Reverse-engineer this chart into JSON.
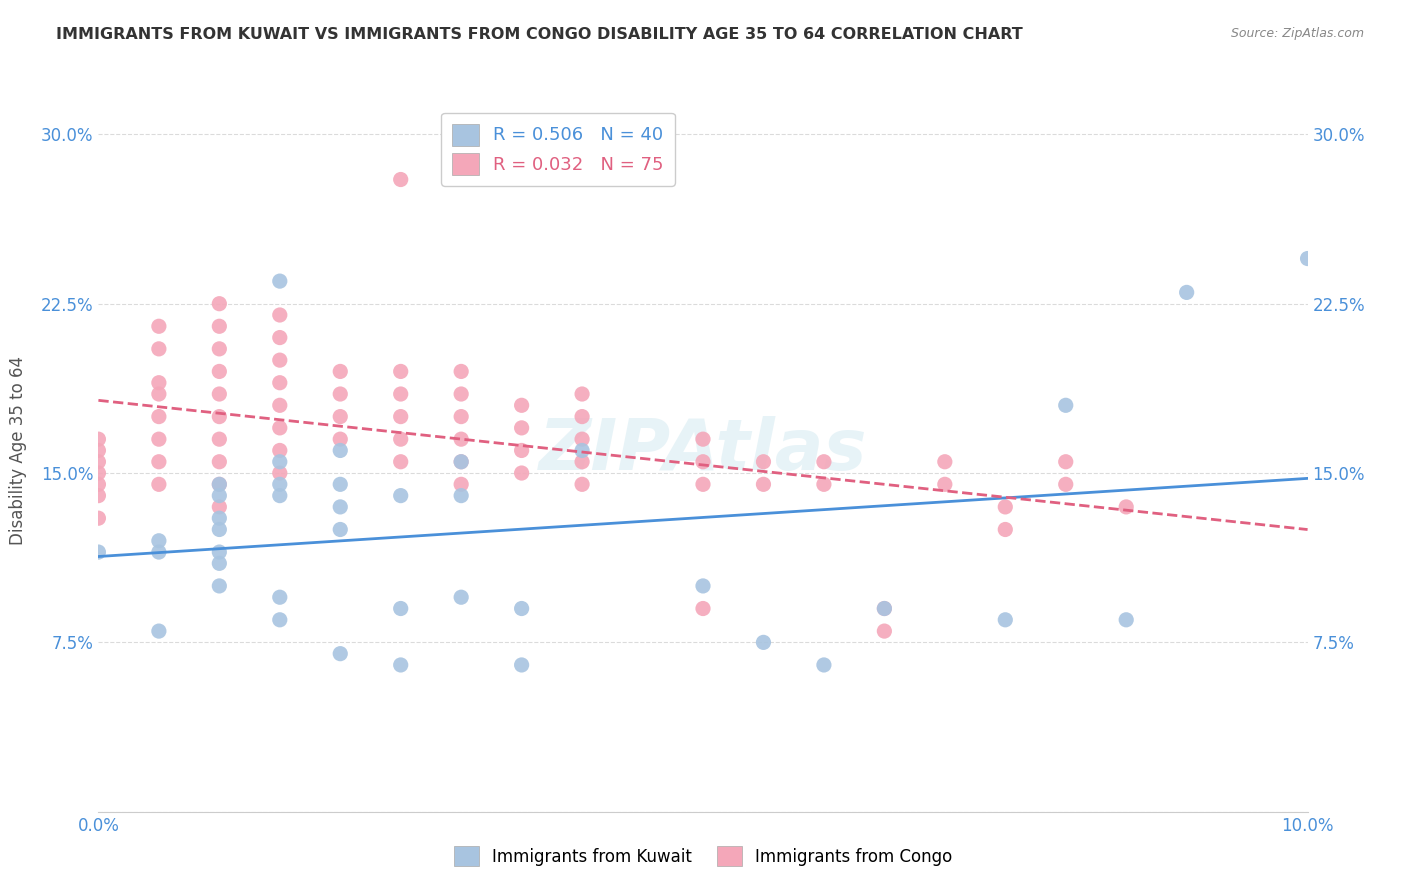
{
  "title": "IMMIGRANTS FROM KUWAIT VS IMMIGRANTS FROM CONGO DISABILITY AGE 35 TO 64 CORRELATION CHART",
  "source": "Source: ZipAtlas.com",
  "xlabel": "",
  "ylabel": "Disability Age 35 to 64",
  "xlim": [
    0.0,
    0.1
  ],
  "ylim": [
    0.0,
    0.32
  ],
  "x_ticks": [
    0.0,
    0.02,
    0.04,
    0.06,
    0.08,
    0.1
  ],
  "x_tick_labels": [
    "0.0%",
    "",
    "",
    "",
    "",
    "10.0%"
  ],
  "y_ticks": [
    0.0,
    0.075,
    0.15,
    0.225,
    0.3
  ],
  "y_tick_labels": [
    "",
    "7.5%",
    "15.0%",
    "22.5%",
    "30.0%"
  ],
  "kuwait_color": "#a8c4e0",
  "congo_color": "#f4a7b9",
  "kuwait_line_color": "#4a90d9",
  "congo_line_color": "#e06080",
  "R_kuwait": 0.506,
  "N_kuwait": 40,
  "R_congo": 0.032,
  "N_congo": 75,
  "watermark": "ZIPAtlas",
  "kuwait_scatter_x": [
    0.0,
    0.005,
    0.005,
    0.005,
    0.01,
    0.01,
    0.01,
    0.01,
    0.01,
    0.01,
    0.01,
    0.015,
    0.015,
    0.015,
    0.015,
    0.015,
    0.015,
    0.02,
    0.02,
    0.02,
    0.02,
    0.02,
    0.025,
    0.025,
    0.025,
    0.03,
    0.03,
    0.03,
    0.035,
    0.035,
    0.04,
    0.05,
    0.055,
    0.06,
    0.065,
    0.075,
    0.08,
    0.085,
    0.09,
    0.1
  ],
  "kuwait_scatter_y": [
    0.115,
    0.12,
    0.115,
    0.08,
    0.13,
    0.145,
    0.14,
    0.125,
    0.115,
    0.11,
    0.1,
    0.235,
    0.155,
    0.145,
    0.14,
    0.095,
    0.085,
    0.16,
    0.145,
    0.135,
    0.125,
    0.07,
    0.14,
    0.09,
    0.065,
    0.155,
    0.14,
    0.095,
    0.09,
    0.065,
    0.16,
    0.1,
    0.075,
    0.065,
    0.09,
    0.085,
    0.18,
    0.085,
    0.23,
    0.245
  ],
  "congo_scatter_x": [
    0.0,
    0.0,
    0.0,
    0.0,
    0.0,
    0.0,
    0.0,
    0.005,
    0.005,
    0.005,
    0.005,
    0.005,
    0.005,
    0.005,
    0.005,
    0.01,
    0.01,
    0.01,
    0.01,
    0.01,
    0.01,
    0.01,
    0.01,
    0.01,
    0.01,
    0.015,
    0.015,
    0.015,
    0.015,
    0.015,
    0.015,
    0.015,
    0.015,
    0.02,
    0.02,
    0.02,
    0.02,
    0.025,
    0.025,
    0.025,
    0.025,
    0.025,
    0.025,
    0.03,
    0.03,
    0.03,
    0.03,
    0.03,
    0.03,
    0.035,
    0.035,
    0.035,
    0.035,
    0.04,
    0.04,
    0.04,
    0.04,
    0.04,
    0.05,
    0.05,
    0.05,
    0.05,
    0.055,
    0.055,
    0.06,
    0.06,
    0.065,
    0.065,
    0.07,
    0.07,
    0.075,
    0.075,
    0.08,
    0.08,
    0.085
  ],
  "congo_scatter_y": [
    0.165,
    0.16,
    0.155,
    0.15,
    0.145,
    0.14,
    0.13,
    0.215,
    0.205,
    0.19,
    0.185,
    0.175,
    0.165,
    0.155,
    0.145,
    0.225,
    0.215,
    0.205,
    0.195,
    0.185,
    0.175,
    0.165,
    0.155,
    0.145,
    0.135,
    0.22,
    0.21,
    0.2,
    0.19,
    0.18,
    0.17,
    0.16,
    0.15,
    0.195,
    0.185,
    0.175,
    0.165,
    0.28,
    0.195,
    0.185,
    0.175,
    0.165,
    0.155,
    0.195,
    0.185,
    0.175,
    0.165,
    0.155,
    0.145,
    0.18,
    0.17,
    0.16,
    0.15,
    0.185,
    0.175,
    0.165,
    0.155,
    0.145,
    0.165,
    0.155,
    0.145,
    0.09,
    0.155,
    0.145,
    0.155,
    0.145,
    0.09,
    0.08,
    0.155,
    0.145,
    0.135,
    0.125,
    0.155,
    0.145,
    0.135
  ]
}
